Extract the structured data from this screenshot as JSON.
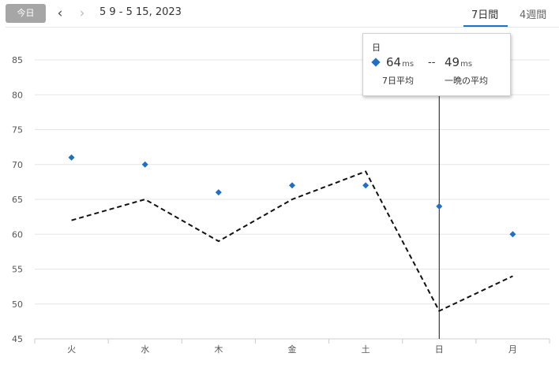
{
  "header": {
    "today_label": "今日",
    "prev_icon": "chevron-left-icon",
    "next_icon": "chevron-right-icon",
    "prev_glyph": "‹",
    "next_glyph": "›",
    "date_range": "5 9 - 5 15, 2023",
    "tabs": [
      {
        "label": "7日間",
        "active": true
      },
      {
        "label": "4週間",
        "active": false
      }
    ]
  },
  "tooltip": {
    "title": "日",
    "value1": "64",
    "unit1": "ms",
    "label1": "7日平均",
    "value2": "49",
    "unit2": "ms",
    "label2": "一晩の平均",
    "dash": "--"
  },
  "colors": {
    "accent": "#1a73c8",
    "marker": "#1f6fc5",
    "line": "#111111",
    "grid": "#e6e6e6"
  },
  "chart_data": {
    "type": "line",
    "categories": [
      "火",
      "水",
      "木",
      "金",
      "土",
      "日",
      "月"
    ],
    "series": [
      {
        "name": "7日平均",
        "style": "diamond-markers",
        "values": [
          71,
          70,
          66,
          67,
          67,
          64,
          60
        ]
      },
      {
        "name": "一晩の平均",
        "style": "dashed-line",
        "values": [
          62,
          65,
          59,
          65,
          69,
          49,
          54
        ]
      }
    ],
    "ylim": [
      45,
      85
    ],
    "yticks": [
      45,
      50,
      55,
      60,
      65,
      70,
      75,
      80,
      85
    ],
    "grid": true,
    "highlight_category": "日"
  }
}
